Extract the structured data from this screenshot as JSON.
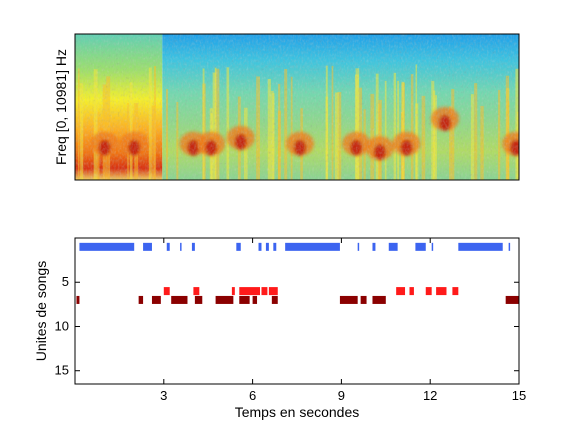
{
  "chart_data": [
    {
      "type": "heatmap",
      "subtype": "spectrogram",
      "ylabel": "Freq [0, 10981] Hz",
      "xlim": [
        0,
        15
      ],
      "ylim": [
        0,
        10981
      ],
      "colormap": "jet",
      "grid": false,
      "segments": [
        {
          "start": 0,
          "end": 2.95,
          "level": "high"
        },
        {
          "start": 2.95,
          "end": 15,
          "level": "medium"
        }
      ],
      "hot_spots": [
        {
          "t": 5.6,
          "f": 0.22,
          "label": ""
        },
        {
          "t": 10.3,
          "f": 0.15,
          "label": ""
        },
        {
          "t": 12.5,
          "f": 0.35,
          "label": ""
        }
      ]
    },
    {
      "type": "raster",
      "xlabel": "Temps en secondes",
      "ylabel": "Unites de songs",
      "xlim": [
        0,
        15
      ],
      "ylim": [
        0,
        16.5
      ],
      "y_reversed": true,
      "xticks": [
        3,
        6,
        9,
        12,
        15
      ],
      "yticks": [
        5,
        10,
        15
      ],
      "grid": false,
      "series": [
        {
          "unit": 1,
          "color": "#3c64f0",
          "segments": [
            [
              0.15,
              2.0
            ],
            [
              2.3,
              2.6
            ],
            [
              3.1,
              3.2
            ],
            [
              3.55,
              3.6
            ],
            [
              3.95,
              4.05
            ],
            [
              5.45,
              5.6
            ],
            [
              6.2,
              6.3
            ],
            [
              6.45,
              6.55
            ],
            [
              6.7,
              6.8
            ],
            [
              7.1,
              8.95
            ],
            [
              9.55,
              9.6
            ],
            [
              10.05,
              10.15
            ],
            [
              10.6,
              10.9
            ],
            [
              11.5,
              11.85
            ],
            [
              12.05,
              12.1
            ],
            [
              12.95,
              14.45
            ],
            [
              14.65,
              14.7
            ]
          ]
        },
        {
          "unit": 6,
          "color": "#ff1a1a",
          "segments": [
            [
              3.0,
              3.2
            ],
            [
              4.0,
              4.2
            ],
            [
              5.3,
              5.4
            ],
            [
              5.55,
              6.25
            ],
            [
              6.3,
              6.5
            ],
            [
              6.55,
              6.85
            ],
            [
              10.85,
              11.15
            ],
            [
              11.3,
              11.45
            ],
            [
              11.85,
              12.05
            ],
            [
              12.2,
              12.55
            ],
            [
              12.75,
              12.95
            ]
          ]
        },
        {
          "unit": 7,
          "color": "#8b0000",
          "segments": [
            [
              0.05,
              0.15
            ],
            [
              2.15,
              2.3
            ],
            [
              2.6,
              2.9
            ],
            [
              3.25,
              3.8
            ],
            [
              4.05,
              4.3
            ],
            [
              4.75,
              5.35
            ],
            [
              5.55,
              5.9
            ],
            [
              6.0,
              6.15
            ],
            [
              6.65,
              6.85
            ],
            [
              8.95,
              9.55
            ],
            [
              9.65,
              9.85
            ],
            [
              10.05,
              10.5
            ],
            [
              14.55,
              15.0
            ]
          ]
        }
      ]
    }
  ]
}
